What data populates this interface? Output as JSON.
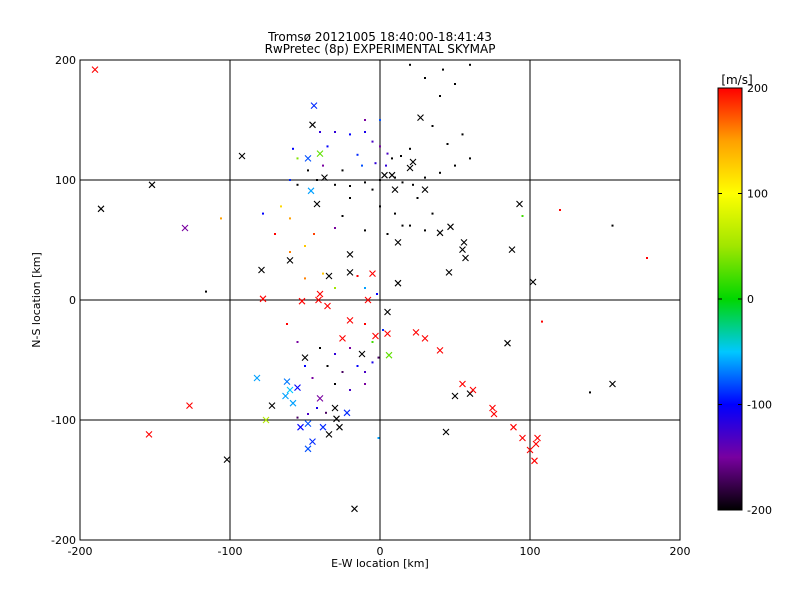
{
  "chart_data": {
    "type": "scatter",
    "title": "Tromsø 20121005 18:40:00-18:41:43",
    "subtitle": "RwPretec (8p) EXPERIMENTAL SKYMAP",
    "xlabel": "E-W location [km]",
    "ylabel": "N-S location [km]",
    "xlim": [
      -200,
      200
    ],
    "ylim": [
      -200,
      200
    ],
    "xticks": [
      -200,
      -100,
      0,
      100,
      200
    ],
    "yticks": [
      -200,
      -100,
      0,
      100,
      200
    ],
    "grid": true,
    "colorbar": {
      "label": "[m/s]",
      "range": [
        -200,
        200
      ],
      "ticks": [
        200,
        100,
        0,
        -100,
        -200
      ],
      "colormap": "black-purple-blue-cyan-green-yellow-red"
    },
    "series": [
      {
        "name": "cross markers",
        "marker": "x",
        "points": [
          [
            -190,
            192,
            200
          ],
          [
            -186,
            76,
            -200
          ],
          [
            -152,
            96,
            -200
          ],
          [
            -130,
            60,
            -150
          ],
          [
            -127,
            -88,
            200
          ],
          [
            -154,
            -112,
            200
          ],
          [
            -102,
            -133,
            -200
          ],
          [
            -92,
            120,
            -200
          ],
          [
            -45,
            146,
            -200
          ],
          [
            -44,
            162,
            -90
          ],
          [
            -40,
            122,
            30
          ],
          [
            -48,
            118,
            -80
          ],
          [
            -79,
            25,
            -200
          ],
          [
            -60,
            33,
            -200
          ],
          [
            -20,
            38,
            -200
          ],
          [
            -20,
            23,
            -200
          ],
          [
            -5,
            22,
            200
          ],
          [
            -52,
            -1,
            200
          ],
          [
            -40,
            5,
            200
          ],
          [
            -78,
            1,
            200
          ],
          [
            -41,
            0,
            200
          ],
          [
            -35,
            -5,
            200
          ],
          [
            -8,
            0,
            200
          ],
          [
            -20,
            -17,
            200
          ],
          [
            -25,
            -32,
            200
          ],
          [
            -3,
            -30,
            200
          ],
          [
            -50,
            -48,
            -200
          ],
          [
            -12,
            -45,
            -200
          ],
          [
            5,
            -10,
            -200
          ],
          [
            5,
            -28,
            200
          ],
          [
            6,
            -46,
            30
          ],
          [
            -62,
            -68,
            -70
          ],
          [
            -60,
            -75,
            -50
          ],
          [
            -63,
            -80,
            -60
          ],
          [
            -55,
            -73,
            -100
          ],
          [
            -58,
            -86,
            -60
          ],
          [
            -40,
            -82,
            -150
          ],
          [
            -30,
            -90,
            -200
          ],
          [
            -29,
            -99,
            -200
          ],
          [
            -27,
            -106,
            -200
          ],
          [
            -34,
            -112,
            -200
          ],
          [
            -38,
            -106,
            -90
          ],
          [
            -48,
            -103,
            -80
          ],
          [
            -45,
            -118,
            -90
          ],
          [
            -48,
            -124,
            -80
          ],
          [
            -53,
            -106,
            -100
          ],
          [
            -72,
            -88,
            -200
          ],
          [
            -82,
            -65,
            -60
          ],
          [
            -76,
            -100,
            60
          ],
          [
            -22,
            -94,
            -90
          ],
          [
            -34,
            20,
            -200
          ],
          [
            -17,
            -174,
            -200
          ],
          [
            8,
            104,
            -200
          ],
          [
            20,
            110,
            -200
          ],
          [
            27,
            152,
            -200
          ],
          [
            22,
            115,
            -200
          ],
          [
            30,
            92,
            -200
          ],
          [
            40,
            56,
            -200
          ],
          [
            46,
            23,
            -200
          ],
          [
            55,
            42,
            -200
          ],
          [
            57,
            35,
            -200
          ],
          [
            56,
            48,
            -200
          ],
          [
            50,
            -80,
            -200
          ],
          [
            60,
            -78,
            -200
          ],
          [
            85,
            -36,
            -200
          ],
          [
            88,
            42,
            -200
          ],
          [
            102,
            15,
            -200
          ],
          [
            44,
            -110,
            -200
          ],
          [
            155,
            -70,
            -200
          ],
          [
            24,
            -27,
            200
          ],
          [
            30,
            -32,
            200
          ],
          [
            40,
            -42,
            200
          ],
          [
            55,
            -70,
            200
          ],
          [
            62,
            -75,
            200
          ],
          [
            75,
            -90,
            200
          ],
          [
            76,
            -95,
            200
          ],
          [
            89,
            -106,
            200
          ],
          [
            95,
            -115,
            200
          ],
          [
            100,
            -125,
            200
          ],
          [
            103,
            -134,
            200
          ],
          [
            104,
            -120,
            200
          ],
          [
            105,
            -115,
            200
          ],
          [
            93,
            80,
            -200
          ],
          [
            3,
            104,
            -200
          ],
          [
            10,
            92,
            -200
          ],
          [
            12,
            48,
            -200
          ],
          [
            12,
            14,
            -200
          ],
          [
            47,
            61,
            -200
          ],
          [
            -46,
            91,
            -60
          ],
          [
            -42,
            80,
            -200
          ],
          [
            -37,
            102,
            -200
          ]
        ]
      },
      {
        "name": "dot markers",
        "marker": "dot",
        "points": [
          [
            -30,
            140,
            -120
          ],
          [
            -20,
            138,
            -100
          ],
          [
            -10,
            140,
            -110
          ],
          [
            -5,
            132,
            -130
          ],
          [
            0,
            128,
            -150
          ],
          [
            5,
            122,
            -130
          ],
          [
            8,
            118,
            -200
          ],
          [
            14,
            120,
            -200
          ],
          [
            20,
            126,
            -200
          ],
          [
            -15,
            121,
            -90
          ],
          [
            -12,
            112,
            -80
          ],
          [
            -3,
            114,
            -120
          ],
          [
            4,
            112,
            -120
          ],
          [
            -25,
            108,
            -200
          ],
          [
            -20,
            95,
            -200
          ],
          [
            -10,
            98,
            -200
          ],
          [
            -5,
            92,
            -200
          ],
          [
            0,
            100,
            -200
          ],
          [
            10,
            102,
            -200
          ],
          [
            15,
            98,
            -200
          ],
          [
            22,
            96,
            -200
          ],
          [
            30,
            102,
            -200
          ],
          [
            40,
            106,
            -200
          ],
          [
            50,
            112,
            -200
          ],
          [
            60,
            118,
            -200
          ],
          [
            45,
            130,
            -200
          ],
          [
            55,
            138,
            -200
          ],
          [
            35,
            145,
            -200
          ],
          [
            40,
            170,
            -200
          ],
          [
            50,
            180,
            -200
          ],
          [
            60,
            196,
            -200
          ],
          [
            42,
            192,
            -200
          ],
          [
            30,
            185,
            -200
          ],
          [
            20,
            196,
            -200
          ],
          [
            -35,
            128,
            -100
          ],
          [
            -38,
            112,
            -150
          ],
          [
            -48,
            108,
            -200
          ],
          [
            -42,
            100,
            -200
          ],
          [
            -55,
            96,
            -200
          ],
          [
            -30,
            96,
            -200
          ],
          [
            -20,
            85,
            -200
          ],
          [
            0,
            78,
            -200
          ],
          [
            10,
            72,
            -200
          ],
          [
            20,
            62,
            -200
          ],
          [
            30,
            58,
            -200
          ],
          [
            35,
            72,
            -200
          ],
          [
            25,
            85,
            -200
          ],
          [
            15,
            62,
            -200
          ],
          [
            5,
            55,
            -200
          ],
          [
            -10,
            58,
            -200
          ],
          [
            -25,
            70,
            -200
          ],
          [
            -60,
            100,
            -90
          ],
          [
            -55,
            118,
            40
          ],
          [
            -58,
            126,
            -100
          ],
          [
            -40,
            140,
            -120
          ],
          [
            -10,
            150,
            -150
          ],
          [
            0,
            150,
            -80
          ],
          [
            -106,
            68,
            150
          ],
          [
            -116,
            7,
            -200
          ],
          [
            -78,
            72,
            -100
          ],
          [
            -70,
            55,
            200
          ],
          [
            -60,
            68,
            150
          ],
          [
            -66,
            78,
            120
          ],
          [
            -44,
            55,
            180
          ],
          [
            -50,
            45,
            130
          ],
          [
            -60,
            40,
            160
          ],
          [
            -30,
            60,
            -150
          ],
          [
            -15,
            20,
            200
          ],
          [
            -38,
            22,
            130
          ],
          [
            -50,
            18,
            160
          ],
          [
            -62,
            -20,
            200
          ],
          [
            -55,
            -35,
            -150
          ],
          [
            -40,
            -40,
            -200
          ],
          [
            -30,
            -45,
            -120
          ],
          [
            -20,
            -40,
            -150
          ],
          [
            -15,
            -55,
            -100
          ],
          [
            -10,
            -60,
            -130
          ],
          [
            -25,
            -60,
            -170
          ],
          [
            -35,
            -55,
            -200
          ],
          [
            -50,
            -55,
            -100
          ],
          [
            -45,
            -65,
            -150
          ],
          [
            -30,
            -70,
            -200
          ],
          [
            -20,
            -75,
            -130
          ],
          [
            -10,
            -70,
            -150
          ],
          [
            -5,
            -52,
            -110
          ],
          [
            -1,
            -48,
            -170
          ],
          [
            -55,
            -98,
            -170
          ],
          [
            -48,
            -95,
            -130
          ],
          [
            -42,
            -90,
            -110
          ],
          [
            -36,
            -94,
            -170
          ],
          [
            2,
            -25,
            -90
          ],
          [
            -5,
            -35,
            20
          ],
          [
            -10,
            -20,
            200
          ],
          [
            -30,
            10,
            50
          ],
          [
            -10,
            10,
            -60
          ],
          [
            -2,
            5,
            -100
          ],
          [
            108,
            -18,
            200
          ],
          [
            120,
            75,
            200
          ],
          [
            155,
            62,
            -200
          ],
          [
            178,
            35,
            200
          ],
          [
            95,
            70,
            20
          ],
          [
            140,
            -77,
            -200
          ],
          [
            -1,
            -115,
            -60
          ]
        ]
      }
    ]
  }
}
